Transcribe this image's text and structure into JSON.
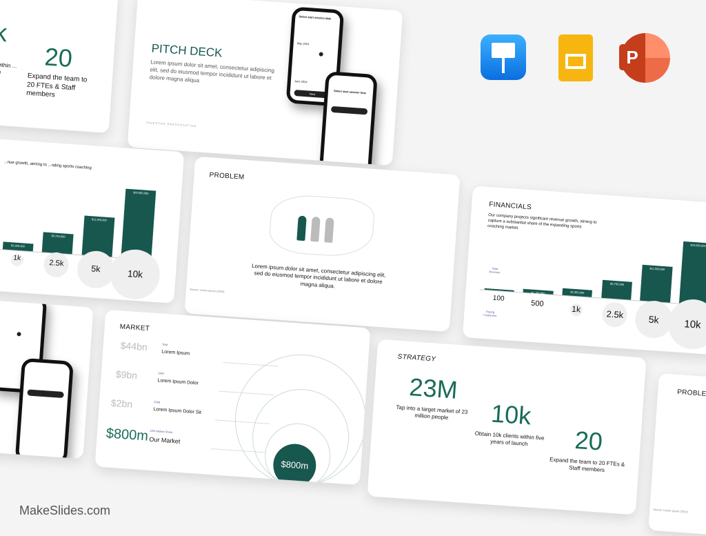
{
  "brand": "MakeSlides.com",
  "apps": [
    {
      "name": "Keynote",
      "color": "#1a8cf0"
    },
    {
      "name": "Google Slides",
      "color": "#f6b60f"
    },
    {
      "name": "PowerPoint",
      "color": "#d24726"
    }
  ],
  "colors": {
    "accent": "#17574e",
    "accent_text": "#1a6b58"
  },
  "strategy_partial": {
    "stat1": "k",
    "caption1": "s within ... nch",
    "stat2": "20",
    "caption2": "Expand the team to 20 FTEs & Staff members"
  },
  "pitch": {
    "title": "PITCH DECK",
    "body": "Lorem ipsum dolor sit amet, consectetur adipiscing elit, sed do eiusmod tempor incididunt ut labore et dolore magna aliqua",
    "footer": "INVESTOR PRESENTATION",
    "phone1": {
      "heading": "Select start session date",
      "month1": "May 2024",
      "month2": "June 2024",
      "button": "Next"
    },
    "phone2": {
      "heading": "Select start session time"
    }
  },
  "chart_left": {
    "text": "...nue growth, aiming to ...nding sports coaching",
    "bars": [
      {
        "label": "$2,300,000",
        "cat": "1k",
        "value": 2300000
      },
      {
        "label": "$5,750,000",
        "cat": "2.5k",
        "value": 5750000
      },
      {
        "label": "$11,500,000",
        "cat": "5k",
        "value": 11500000
      },
      {
        "label": "$20,000,000",
        "cat": "10k",
        "value": 20000000
      }
    ]
  },
  "problem": {
    "title": "PROBLEM",
    "body": "Lorem ipsum dolor sit amet, consectetur adipiscing elit, sed do eiusmod tempor incididunt ut labore et dolore magna aliqua.",
    "source": "Source: Lorem ipsum (2024)"
  },
  "financials": {
    "title": "FINANCIALS",
    "body": "Our company projects significant revenue growth, aiming to capture a substantial share of the expanding sports coaching market.",
    "y_label": "Total Revenue",
    "x_label": "Paying Customers",
    "bars": [
      {
        "label": "$230,000",
        "cat": "100",
        "value": 230000
      },
      {
        "label": "$1,150,000",
        "cat": "500",
        "value": 1150000
      },
      {
        "label": "$2,300,000",
        "cat": "1k",
        "value": 2300000
      },
      {
        "label": "$5,750,000",
        "cat": "2.5k",
        "value": 5750000
      },
      {
        "label": "$11,500,000",
        "cat": "5k",
        "value": 11500000
      },
      {
        "label": "$20,000,000",
        "cat": "10k",
        "value": 20000000
      }
    ]
  },
  "market": {
    "title": "MARKET",
    "rows": [
      {
        "value": "$44bn",
        "tag": "TAM",
        "name": "Lorem Ipsum"
      },
      {
        "value": "$9bn",
        "tag": "SAM",
        "name": "Lorem Ipsum Dolor"
      },
      {
        "value": "$2bn",
        "tag": "SOM",
        "name": "Lorem Ipsum Dolor Sit"
      },
      {
        "value": "$800m",
        "tag": "10% Market Share",
        "name": "Our Market"
      }
    ],
    "bubble": "$800m"
  },
  "strategy": {
    "title": "STRATEGY",
    "stats": [
      {
        "value": "23M",
        "caption": "Tap into a target market of 23 million people"
      },
      {
        "value": "10k",
        "caption": "Obtain 10k clients within five years of launch"
      },
      {
        "value": "20",
        "caption": "Expand the team to 20 FTEs & Staff members"
      }
    ]
  },
  "problem_right": {
    "title": "PROBLEM",
    "source": "Source: Lorem ipsum (2024)"
  }
}
